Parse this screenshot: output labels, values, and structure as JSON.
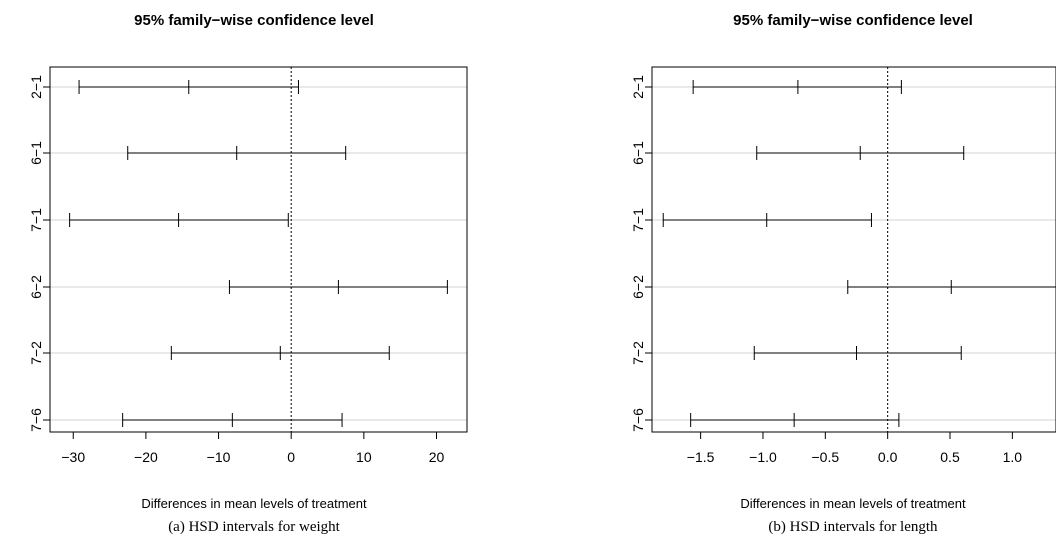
{
  "chart_data": [
    {
      "type": "interval",
      "title": "95% family−wise confidence level",
      "xlabel": "Differences in mean levels of treatment",
      "caption": "(a) HSD intervals for weight",
      "categories": [
        "2−1",
        "6−1",
        "7−1",
        "6−2",
        "7−2",
        "7−6"
      ],
      "lower": [
        -29.2,
        -22.5,
        -30.5,
        -8.5,
        -16.5,
        -23.2
      ],
      "estimate": [
        -14.1,
        -7.5,
        -15.5,
        6.5,
        -1.5,
        -8.1
      ],
      "upper": [
        1.0,
        7.5,
        -0.4,
        21.5,
        13.5,
        7.0
      ],
      "xlim": [
        -33.2,
        24.2
      ],
      "xticks": [
        -30,
        -20,
        -10,
        0,
        10,
        20
      ],
      "xtick_labels": [
        "−30",
        "−20",
        "−10",
        "0",
        "10",
        "20"
      ],
      "reference_line": 0
    },
    {
      "type": "interval",
      "title": "95% family−wise confidence level",
      "xlabel": "Differences in mean levels of treatment",
      "caption": "(b) HSD intervals for length",
      "categories": [
        "2−1",
        "6−1",
        "7−1",
        "6−2",
        "7−2",
        "7−6"
      ],
      "lower": [
        -1.56,
        -1.05,
        -1.8,
        -0.32,
        -1.07,
        -1.58
      ],
      "estimate": [
        -0.72,
        -0.22,
        -0.97,
        0.51,
        -0.25,
        -0.75
      ],
      "upper": [
        0.11,
        0.61,
        -0.13,
        1.35,
        0.59,
        0.09
      ],
      "xlim": [
        -1.89,
        1.35
      ],
      "xticks": [
        -1.5,
        -1.0,
        -0.5,
        0.0,
        0.5,
        1.0
      ],
      "xtick_labels": [
        "−1.5",
        "−1.0",
        "−0.5",
        "0.0",
        "0.5",
        "1.0"
      ],
      "reference_line": 0
    }
  ]
}
